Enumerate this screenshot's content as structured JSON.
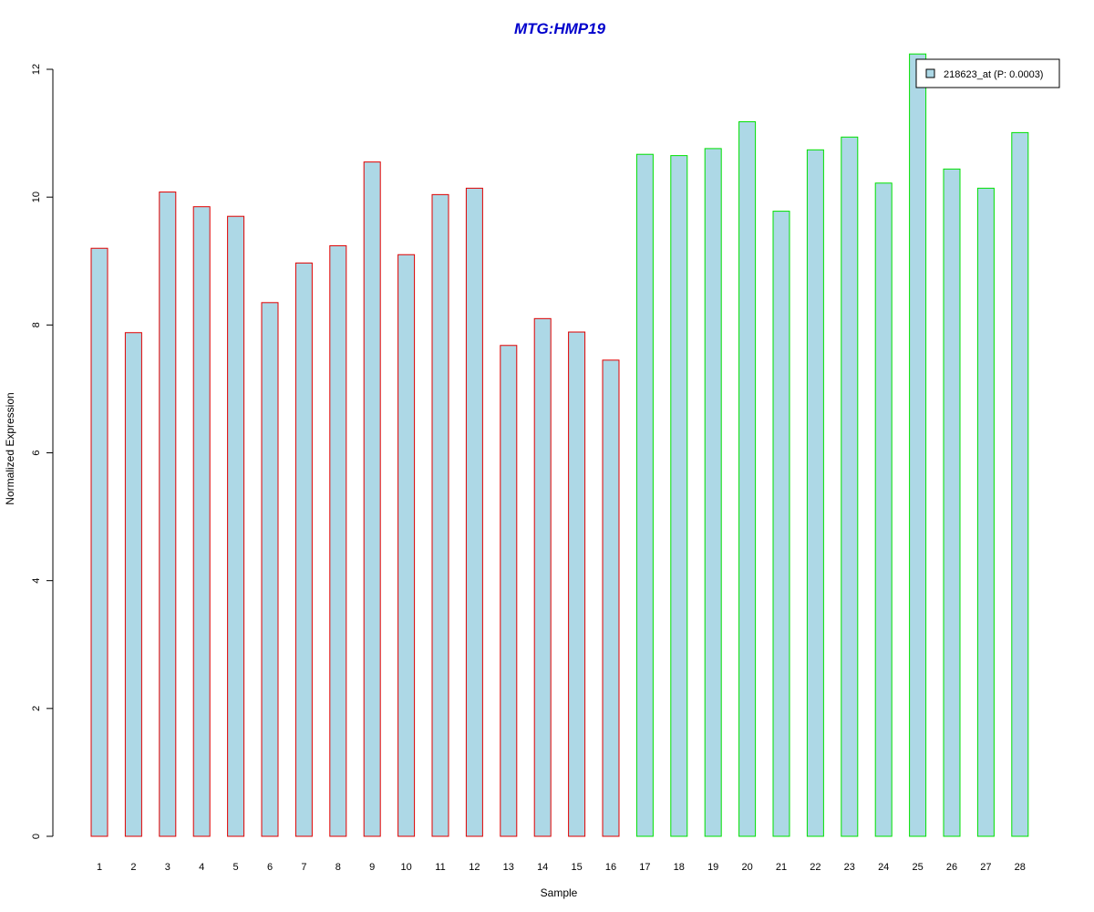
{
  "chart_data": {
    "type": "bar",
    "title": "MTG:HMP19",
    "xlabel": "Sample",
    "ylabel": "Normalized Expression",
    "ylim": [
      0,
      12
    ],
    "yticks": [
      "0",
      "2",
      "4",
      "6",
      "8",
      "10",
      "12"
    ],
    "categories": [
      "1",
      "2",
      "3",
      "4",
      "5",
      "6",
      "7",
      "8",
      "9",
      "10",
      "11",
      "12",
      "13",
      "14",
      "15",
      "16",
      "17",
      "18",
      "19",
      "20",
      "21",
      "22",
      "23",
      "24",
      "25",
      "26",
      "27",
      "28"
    ],
    "series": [
      {
        "name": "218623_at (P: 0.0003)",
        "values": [
          9.2,
          7.88,
          10.08,
          9.85,
          9.7,
          8.35,
          8.97,
          9.24,
          10.55,
          9.1,
          10.04,
          10.14,
          7.68,
          8.1,
          7.89,
          7.45,
          10.67,
          10.65,
          10.76,
          11.18,
          9.78,
          10.74,
          10.94,
          10.22,
          12.24,
          10.44,
          10.14,
          11.01
        ]
      }
    ],
    "groups": [
      {
        "samples": "1-16",
        "border_color": "#e00000"
      },
      {
        "samples": "17-28",
        "border_color": "#00e000"
      }
    ],
    "legend": {
      "label": "218623_at (P: 0.0003)",
      "position": "top-right"
    },
    "grid": false
  },
  "colors": {
    "bar_fill": "#add8e6",
    "group1_border": "#e00000",
    "group2_border": "#00e000",
    "title": "#0000cc",
    "axis": "#000000"
  }
}
